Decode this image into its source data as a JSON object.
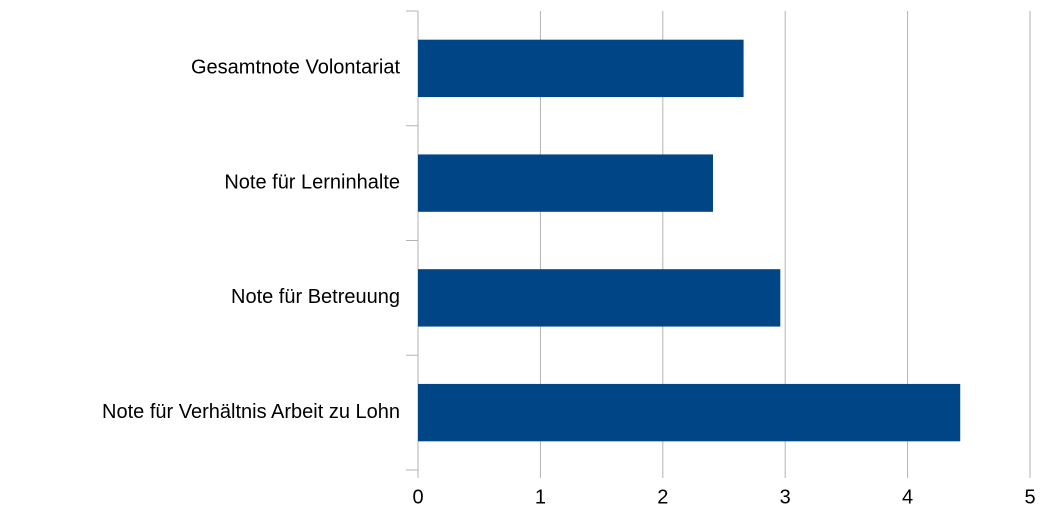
{
  "chart_data": {
    "type": "bar",
    "orientation": "horizontal",
    "categories": [
      "Gesamtnote Volontariat",
      "Note für Lerninhalte",
      "Note für Betreuung",
      "Note für Verhältnis Arbeit zu Lohn"
    ],
    "values": [
      2.66,
      2.41,
      2.96,
      4.43
    ],
    "color": "#004586",
    "xlim": [
      0,
      5
    ],
    "xticks": [
      0,
      1,
      2,
      3,
      4,
      5
    ],
    "grid": true
  }
}
